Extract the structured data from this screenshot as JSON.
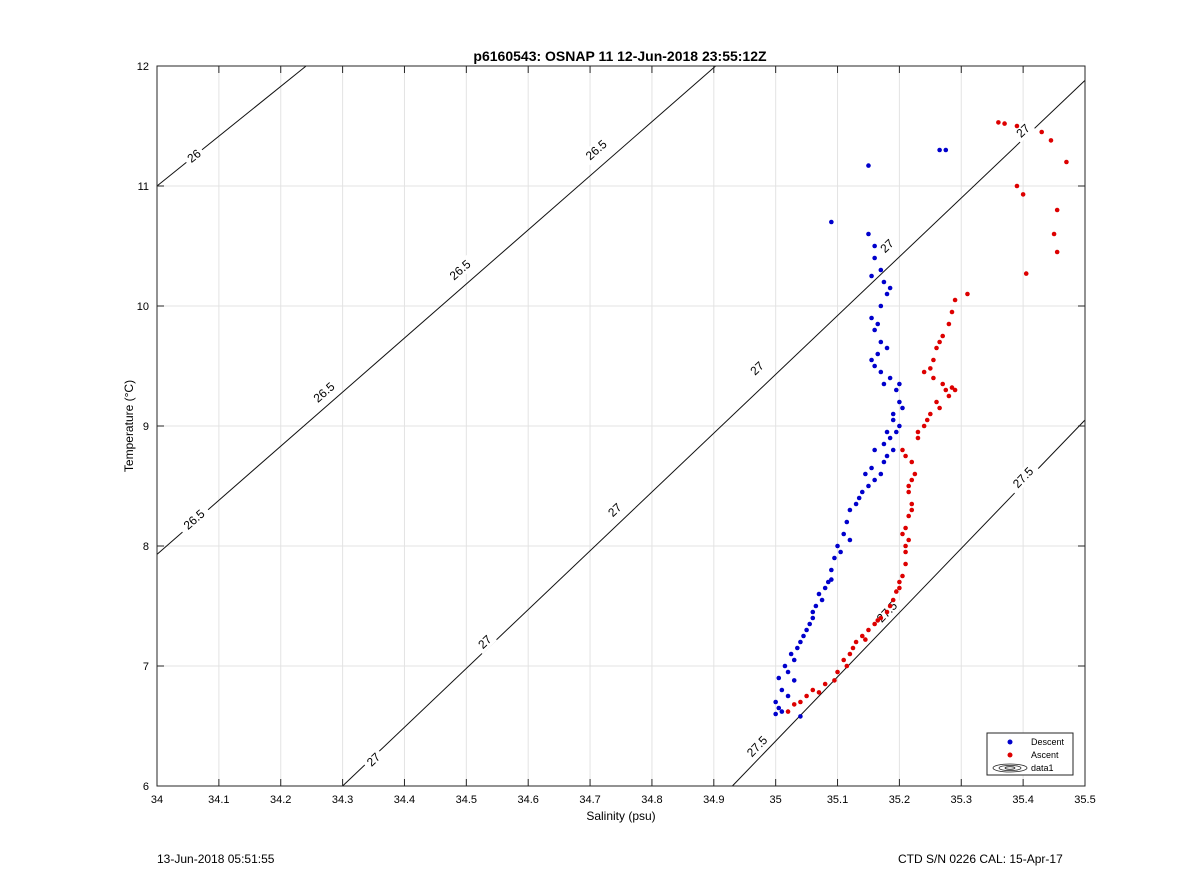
{
  "chart_data": {
    "type": "scatter",
    "title": "p6160543: OSNAP 11 12-Jun-2018 23:55:12Z",
    "xlabel": "Salinity (psu)",
    "ylabel": "Temperature (°C)",
    "xlim": [
      34,
      35.5
    ],
    "ylim": [
      6,
      12
    ],
    "xticks": [
      "34",
      "34.1",
      "34.2",
      "34.3",
      "34.4",
      "34.5",
      "34.6",
      "34.7",
      "34.8",
      "34.9",
      "35",
      "35.1",
      "35.2",
      "35.3",
      "35.4",
      "35.5"
    ],
    "yticks": [
      "6",
      "7",
      "8",
      "9",
      "10",
      "11",
      "12"
    ],
    "grid": true,
    "legend_position": "bottom-right",
    "legend": [
      {
        "label": "Descent",
        "color": "#0000cc",
        "marker": "dot"
      },
      {
        "label": "Ascent",
        "color": "#dd0000",
        "marker": "dot"
      },
      {
        "label": "data1",
        "marker": "contour"
      }
    ],
    "contours": [
      {
        "level": "26",
        "line": [
          [
            34,
            11.0
          ],
          [
            34.241,
            12
          ]
        ],
        "labels": [
          [
            34.06,
            11.25
          ]
        ]
      },
      {
        "level": "26.5",
        "line": [
          [
            34,
            7.93
          ],
          [
            34.903,
            12
          ]
        ],
        "labels": [
          [
            34.06,
            8.22
          ],
          [
            34.27,
            9.28
          ],
          [
            34.49,
            10.3
          ],
          [
            34.71,
            11.3
          ]
        ]
      },
      {
        "level": "27",
        "line": [
          [
            34.3,
            6
          ],
          [
            35.5,
            11.88
          ]
        ],
        "labels": [
          [
            34.35,
            6.22
          ],
          [
            34.53,
            7.2
          ],
          [
            34.74,
            8.3
          ],
          [
            34.97,
            9.48
          ],
          [
            35.18,
            10.5
          ],
          [
            35.4,
            11.46
          ]
        ]
      },
      {
        "level": "27.5",
        "line": [
          [
            34.93,
            6
          ],
          [
            35.5,
            9.05
          ]
        ],
        "labels": [
          [
            34.97,
            6.33
          ],
          [
            35.18,
            7.45
          ],
          [
            35.4,
            8.57
          ]
        ]
      }
    ],
    "series": [
      {
        "name": "Descent",
        "color": "#0000cc",
        "points": [
          [
            35.0,
            6.6
          ],
          [
            35.005,
            6.65
          ],
          [
            35.0,
            6.7
          ],
          [
            35.01,
            6.8
          ],
          [
            35.005,
            6.9
          ],
          [
            35.02,
            6.95
          ],
          [
            35.015,
            7.0
          ],
          [
            35.03,
            7.05
          ],
          [
            35.025,
            7.1
          ],
          [
            35.035,
            7.15
          ],
          [
            35.04,
            7.2
          ],
          [
            35.05,
            7.3
          ],
          [
            35.055,
            7.35
          ],
          [
            35.06,
            7.4
          ],
          [
            35.065,
            7.5
          ],
          [
            35.07,
            7.6
          ],
          [
            35.08,
            7.65
          ],
          [
            35.085,
            7.7
          ],
          [
            35.09,
            7.8
          ],
          [
            35.095,
            7.9
          ],
          [
            35.1,
            8.0
          ],
          [
            35.11,
            8.1
          ],
          [
            35.115,
            8.2
          ],
          [
            35.12,
            8.3
          ],
          [
            35.13,
            8.35
          ],
          [
            35.14,
            8.45
          ],
          [
            35.15,
            8.5
          ],
          [
            35.16,
            8.55
          ],
          [
            35.17,
            8.6
          ],
          [
            35.175,
            8.7
          ],
          [
            35.18,
            8.75
          ],
          [
            35.19,
            8.8
          ],
          [
            35.185,
            8.9
          ],
          [
            35.195,
            8.95
          ],
          [
            35.2,
            9.0
          ],
          [
            35.19,
            9.1
          ],
          [
            35.2,
            9.2
          ],
          [
            35.195,
            9.3
          ],
          [
            35.185,
            9.4
          ],
          [
            35.17,
            9.45
          ],
          [
            35.16,
            9.5
          ],
          [
            35.165,
            9.6
          ],
          [
            35.17,
            9.7
          ],
          [
            35.16,
            9.8
          ],
          [
            35.155,
            9.9
          ],
          [
            35.17,
            10.0
          ],
          [
            35.18,
            10.1
          ],
          [
            35.175,
            10.2
          ],
          [
            35.17,
            10.3
          ],
          [
            35.16,
            10.4
          ],
          [
            35.16,
            10.5
          ],
          [
            35.15,
            10.6
          ],
          [
            35.09,
            10.7
          ],
          [
            35.15,
            11.17
          ],
          [
            35.265,
            11.3
          ],
          [
            35.275,
            11.3
          ],
          [
            35.01,
            6.62
          ],
          [
            35.02,
            6.75
          ],
          [
            35.04,
            6.58
          ],
          [
            35.03,
            6.88
          ],
          [
            35.045,
            7.25
          ],
          [
            35.06,
            7.45
          ],
          [
            35.075,
            7.55
          ],
          [
            35.09,
            7.72
          ],
          [
            35.105,
            7.95
          ],
          [
            35.12,
            8.05
          ],
          [
            35.135,
            8.4
          ],
          [
            35.145,
            8.6
          ],
          [
            35.155,
            8.65
          ],
          [
            35.16,
            8.8
          ],
          [
            35.175,
            8.85
          ],
          [
            35.18,
            8.95
          ],
          [
            35.19,
            9.05
          ],
          [
            35.205,
            9.15
          ],
          [
            35.2,
            9.35
          ],
          [
            35.175,
            9.35
          ],
          [
            35.155,
            9.55
          ],
          [
            35.18,
            9.65
          ],
          [
            35.165,
            9.85
          ],
          [
            35.185,
            10.15
          ],
          [
            35.155,
            10.25
          ]
        ]
      },
      {
        "name": "Ascent",
        "color": "#dd0000",
        "points": [
          [
            35.02,
            6.62
          ],
          [
            35.04,
            6.7
          ],
          [
            35.06,
            6.8
          ],
          [
            35.08,
            6.85
          ],
          [
            35.1,
            6.95
          ],
          [
            35.11,
            7.05
          ],
          [
            35.12,
            7.1
          ],
          [
            35.13,
            7.2
          ],
          [
            35.14,
            7.25
          ],
          [
            35.15,
            7.3
          ],
          [
            35.16,
            7.35
          ],
          [
            35.17,
            7.4
          ],
          [
            35.18,
            7.45
          ],
          [
            35.19,
            7.55
          ],
          [
            35.2,
            7.65
          ],
          [
            35.205,
            7.75
          ],
          [
            35.21,
            7.85
          ],
          [
            35.21,
            7.95
          ],
          [
            35.215,
            8.05
          ],
          [
            35.21,
            8.15
          ],
          [
            35.215,
            8.25
          ],
          [
            35.22,
            8.35
          ],
          [
            35.215,
            8.45
          ],
          [
            35.22,
            8.55
          ],
          [
            35.225,
            8.6
          ],
          [
            35.22,
            8.7
          ],
          [
            35.21,
            8.75
          ],
          [
            35.205,
            8.8
          ],
          [
            35.23,
            8.9
          ],
          [
            35.24,
            9.0
          ],
          [
            35.25,
            9.1
          ],
          [
            35.26,
            9.2
          ],
          [
            35.28,
            9.25
          ],
          [
            35.29,
            9.3
          ],
          [
            35.27,
            9.35
          ],
          [
            35.255,
            9.4
          ],
          [
            35.24,
            9.45
          ],
          [
            35.255,
            9.55
          ],
          [
            35.26,
            9.65
          ],
          [
            35.27,
            9.75
          ],
          [
            35.28,
            9.85
          ],
          [
            35.285,
            9.95
          ],
          [
            35.29,
            10.05
          ],
          [
            35.31,
            10.1
          ],
          [
            35.36,
            11.53
          ],
          [
            35.37,
            11.52
          ],
          [
            35.39,
            11.5
          ],
          [
            35.43,
            11.45
          ],
          [
            35.445,
            11.38
          ],
          [
            35.47,
            11.2
          ],
          [
            35.39,
            11.0
          ],
          [
            35.4,
            10.93
          ],
          [
            35.455,
            10.8
          ],
          [
            35.45,
            10.6
          ],
          [
            35.455,
            10.45
          ],
          [
            35.405,
            10.27
          ],
          [
            35.03,
            6.68
          ],
          [
            35.05,
            6.75
          ],
          [
            35.07,
            6.78
          ],
          [
            35.095,
            6.88
          ],
          [
            35.115,
            7.0
          ],
          [
            35.125,
            7.15
          ],
          [
            35.145,
            7.22
          ],
          [
            35.165,
            7.38
          ],
          [
            35.185,
            7.5
          ],
          [
            35.195,
            7.62
          ],
          [
            35.2,
            7.7
          ],
          [
            35.21,
            8.0
          ],
          [
            35.205,
            8.1
          ],
          [
            35.22,
            8.3
          ],
          [
            35.215,
            8.5
          ],
          [
            35.23,
            8.95
          ],
          [
            35.245,
            9.05
          ],
          [
            35.265,
            9.15
          ],
          [
            35.275,
            9.3
          ],
          [
            35.285,
            9.32
          ],
          [
            35.25,
            9.48
          ],
          [
            35.265,
            9.7
          ]
        ]
      }
    ]
  },
  "footer": {
    "timestamp": "13-Jun-2018 05:51:55",
    "instrument": "CTD S/N 0226  CAL: 15-Apr-17"
  }
}
